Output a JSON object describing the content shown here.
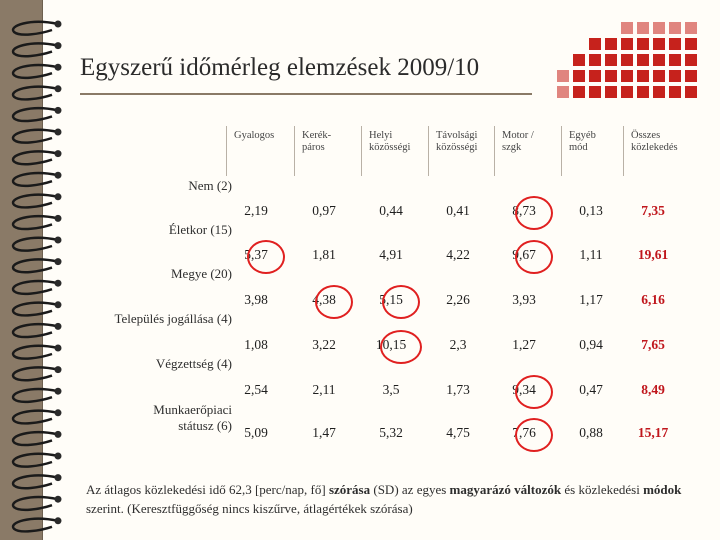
{
  "title": "Egyszerű időmérleg elemzések 2009/10",
  "columns": [
    "Gyalogos",
    "Kerék-\npáros",
    "Helyi\nközösségi",
    "Távolsági\nközösségi",
    "Motor /\nszgk",
    "Egyéb\nmód",
    "Összes\nközlekedés"
  ],
  "rows": [
    {
      "label": "Nem (2)",
      "values": [
        "2,19",
        "0,97",
        "0,44",
        "0,41",
        "8,73",
        "0,13",
        "7,35"
      ]
    },
    {
      "label": "Életkor (15)",
      "values": [
        "5,37",
        "1,81",
        "4,91",
        "4,22",
        "9,67",
        "1,11",
        "19,61"
      ]
    },
    {
      "label": "Megye (20)",
      "values": [
        "3,98",
        "4,38",
        "5,15",
        "2,26",
        "3,93",
        "1,17",
        "6,16"
      ]
    },
    {
      "label": "Település jogállása (4)",
      "values": [
        "1,08",
        "3,22",
        "10,15",
        "2,3",
        "1,27",
        "0,94",
        "7,65"
      ]
    },
    {
      "label": "Végzettség (4)",
      "values": [
        "2,54",
        "2,11",
        "3,5",
        "1,73",
        "9,34",
        "0,47",
        "8,49"
      ]
    },
    {
      "label": "Munkaerőpiaci\nstátusz (6)",
      "values": [
        "5,09",
        "1,47",
        "5,32",
        "4,75",
        "7,76",
        "0,88",
        "15,17"
      ]
    }
  ],
  "footnote": {
    "p1": "Az átlagos közlekedési idő 62,3 [perc/nap, fő] ",
    "b1": "szórása",
    "p2": " (SD) az egyes ",
    "b2": "magyarázó változók",
    "p3": " és közlekedési ",
    "b3": "módok",
    "p4": " szerint. (Keresztfüggőség nincs kiszűrve, átlagértékek szórása)"
  },
  "colors": {
    "accent": "#c0161c",
    "circle": "#e02020",
    "deco": "#c6221c"
  }
}
